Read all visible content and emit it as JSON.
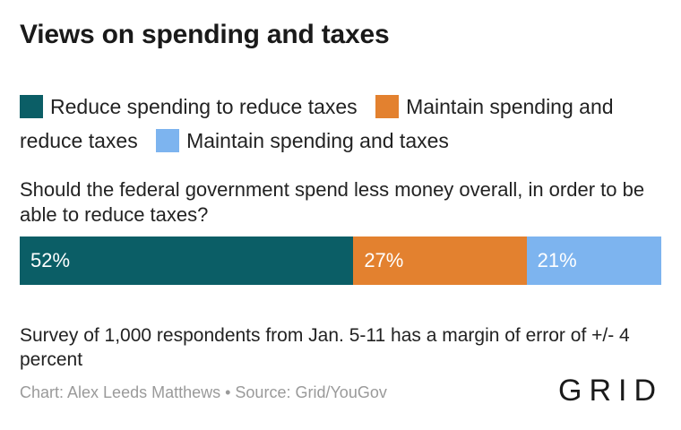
{
  "chart_data": {
    "type": "bar",
    "stacked": true,
    "orientation": "horizontal",
    "title": "Views on spending and taxes",
    "question": "Should the federal government spend less money overall, in order to be able to reduce taxes?",
    "series": [
      {
        "name": "Reduce spending to reduce taxes",
        "value": 52,
        "label": "52%",
        "color": "#0b5e66"
      },
      {
        "name": "Maintain spending and reduce taxes",
        "value": 27,
        "label": "27%",
        "color": "#e3812f"
      },
      {
        "name": "Maintain spending and taxes",
        "value": 21,
        "label": "21%",
        "color": "#7db4ef"
      }
    ],
    "xlim": [
      0,
      100
    ],
    "legend_position": "top",
    "note": "Survey of 1,000 respondents from Jan. 5-11 has a margin of error of +/- 4 percent",
    "credit": "Chart: Alex Leeds Matthews • Source: Grid/YouGov"
  },
  "logo": "GRID"
}
